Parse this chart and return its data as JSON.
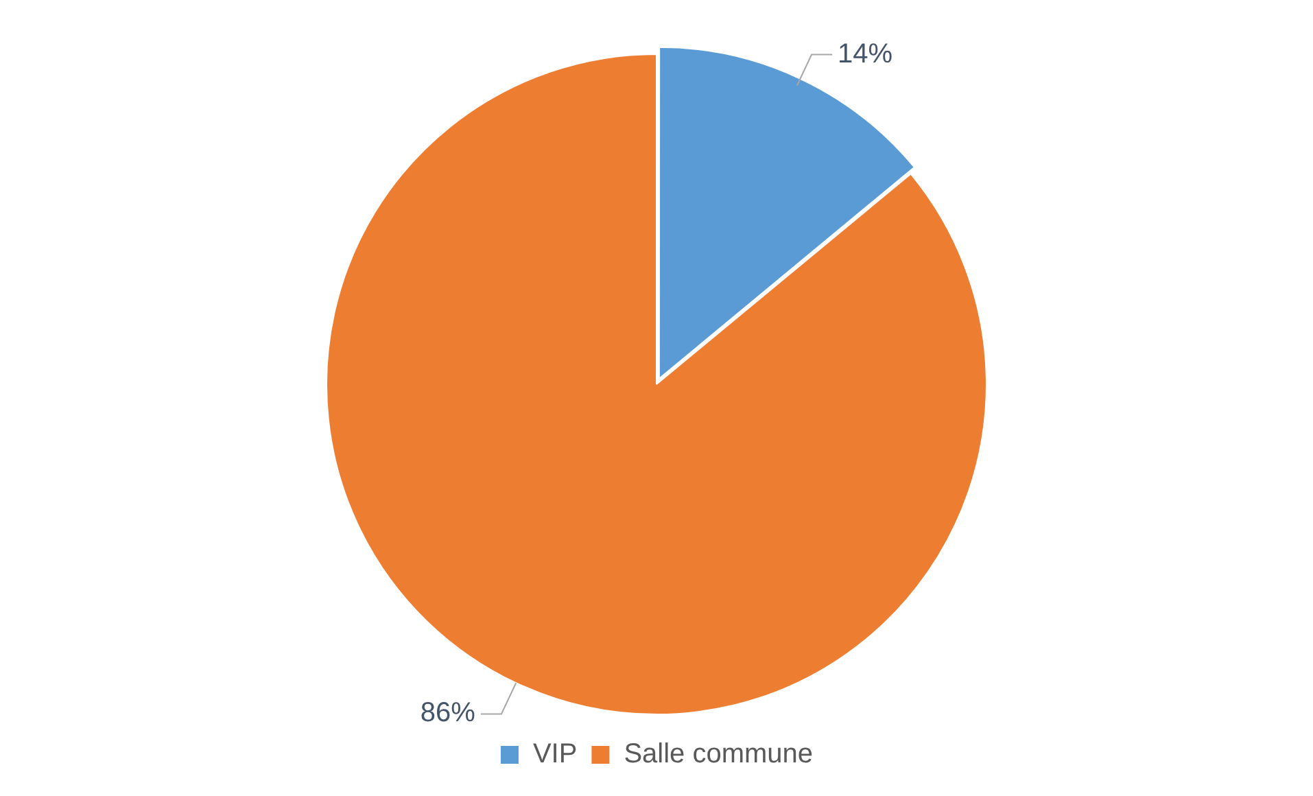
{
  "chart_data": {
    "type": "pie",
    "categories": [
      "VIP",
      "Salle commune"
    ],
    "values": [
      14,
      86
    ],
    "colors": [
      "#5b9bd5",
      "#ed7d31"
    ],
    "value_labels": [
      "14%",
      "86%"
    ],
    "legend": "bottom"
  }
}
